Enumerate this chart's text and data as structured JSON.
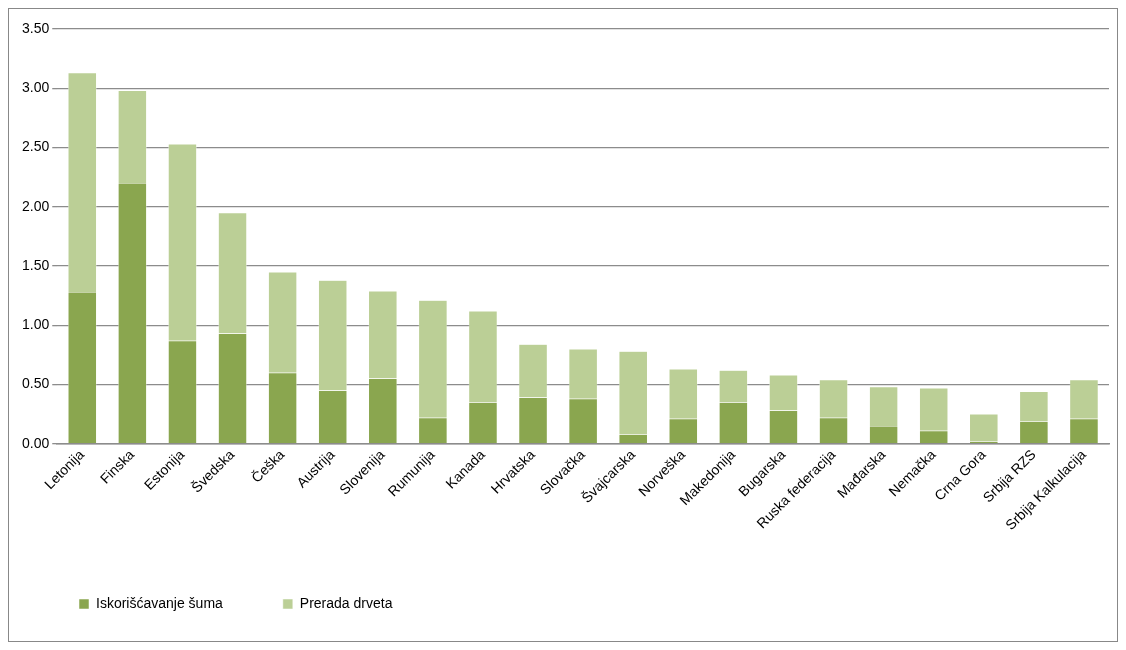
{
  "chart_data": {
    "type": "bar",
    "stacked": true,
    "categories": [
      "Letonija",
      "Finska",
      "Estonija",
      "Švedska",
      "Češka",
      "Austrija",
      "Slovenija",
      "Rumunija",
      "Kanada",
      "Hrvatska",
      "Slovačka",
      "Švajcarska",
      "Norveška",
      "Makedonija",
      "Bugarska",
      "Ruska federacija",
      "Mađarska",
      "Nemačka",
      "Crna Gora",
      "Srbija RZS",
      "Srbija Kalkulacija"
    ],
    "series": [
      {
        "name": "Iskorišćavanje šuma",
        "color": "#8aa64f",
        "values": [
          1.28,
          2.2,
          0.87,
          0.93,
          0.6,
          0.45,
          0.55,
          0.22,
          0.35,
          0.39,
          0.38,
          0.08,
          0.21,
          0.35,
          0.28,
          0.22,
          0.15,
          0.11,
          0.02,
          0.19,
          0.21
        ]
      },
      {
        "name": "Prerada drveta",
        "color": "#bbcf96",
        "values": [
          1.85,
          0.78,
          1.66,
          1.02,
          0.85,
          0.93,
          0.74,
          0.99,
          0.77,
          0.45,
          0.42,
          0.7,
          0.42,
          0.27,
          0.3,
          0.32,
          0.33,
          0.36,
          0.23,
          0.25,
          0.33
        ]
      }
    ],
    "ylim": [
      0,
      3.5
    ],
    "yticks": [
      {
        "value": 0,
        "label": "0.00"
      },
      {
        "value": 0.5,
        "label": "0.50"
      },
      {
        "value": 1,
        "label": "1.00"
      },
      {
        "value": 1.5,
        "label": "1.50"
      },
      {
        "value": 2,
        "label": "2.00"
      },
      {
        "value": 2.5,
        "label": "2.50"
      },
      {
        "value": 3,
        "label": "3.00"
      },
      {
        "value": 3.5,
        "label": "3.50"
      }
    ],
    "grid": "y",
    "legend": "bottom"
  }
}
